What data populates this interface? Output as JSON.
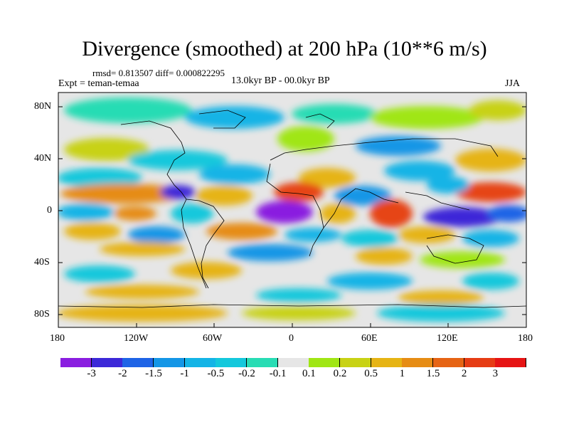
{
  "title": "Divergence (smoothed) at 200 hPa (10**6 m/s)",
  "stats": "rmsd= 0.813507 diff= 0.000822295",
  "experiment": "Expt = teman-temaa",
  "period": "13.0kyr BP - 00.0kyr BP",
  "season": "JJA",
  "map": {
    "lat_labels": [
      "80N",
      "40N",
      "0",
      "40S",
      "80S"
    ],
    "lon_labels": [
      "180",
      "120W",
      "60W",
      "0",
      "60E",
      "120E",
      "180"
    ]
  },
  "colorbar": {
    "labels": [
      "-3",
      "-2",
      "-1.5",
      "-1",
      "-0.5",
      "-0.2",
      "-0.1",
      "0.1",
      "0.2",
      "0.5",
      "1",
      "1.5",
      "2",
      "3"
    ],
    "colors": [
      "#8a1ee0",
      "#3c28d8",
      "#1e64e6",
      "#1496e6",
      "#14b4e6",
      "#14c8dc",
      "#28dcb4",
      "#e6e6e6",
      "#a0e614",
      "#c8d214",
      "#e6b414",
      "#e68c14",
      "#e66414",
      "#e63c14",
      "#e61414"
    ]
  }
}
